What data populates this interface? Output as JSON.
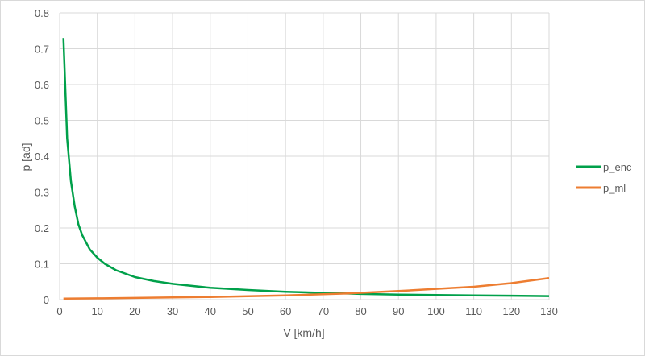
{
  "chart_data": {
    "type": "line",
    "title": "",
    "xlabel": "V [km/h]",
    "ylabel": "p [ad]",
    "xlim": [
      0,
      130
    ],
    "ylim": [
      0,
      0.8
    ],
    "xticks": [
      "0",
      "10",
      "20",
      "30",
      "40",
      "50",
      "60",
      "70",
      "80",
      "90",
      "100",
      "110",
      "120",
      "130"
    ],
    "yticks": [
      "0",
      "0.1",
      "0.2",
      "0.3",
      "0.4",
      "0.5",
      "0.6",
      "0.7",
      "0.8"
    ],
    "grid": true,
    "legend_position": "right",
    "series": [
      {
        "name": "p_enc",
        "color": "#00a04a",
        "x": [
          1,
          2,
          3,
          4,
          5,
          6,
          8,
          10,
          12,
          15,
          20,
          25,
          30,
          40,
          50,
          60,
          70,
          80,
          90,
          100,
          110,
          120,
          130
        ],
        "y": [
          0.73,
          0.45,
          0.33,
          0.26,
          0.21,
          0.18,
          0.14,
          0.117,
          0.1,
          0.082,
          0.063,
          0.052,
          0.044,
          0.033,
          0.027,
          0.022,
          0.019,
          0.016,
          0.014,
          0.013,
          0.012,
          0.011,
          0.01
        ]
      },
      {
        "name": "p_ml",
        "color": "#ed7d31",
        "x": [
          1,
          10,
          20,
          30,
          40,
          50,
          60,
          70,
          76,
          80,
          90,
          100,
          110,
          120,
          130
        ],
        "y": [
          0.003,
          0.0037,
          0.0047,
          0.006,
          0.0075,
          0.0095,
          0.012,
          0.015,
          0.017,
          0.019,
          0.024,
          0.03,
          0.036,
          0.046,
          0.06
        ]
      }
    ]
  }
}
